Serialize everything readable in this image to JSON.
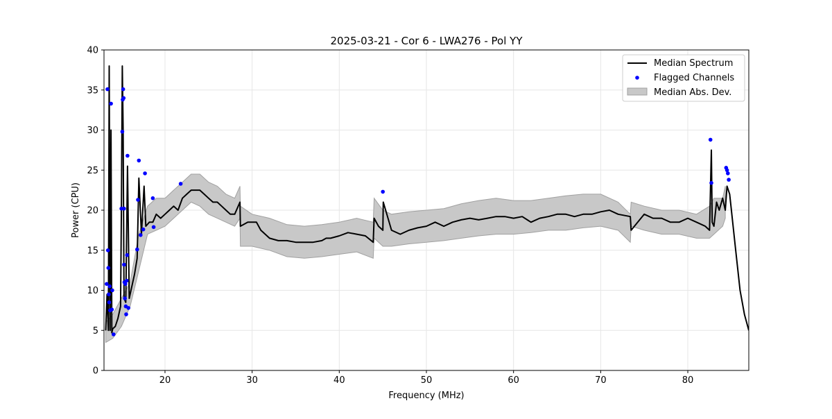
{
  "chart_data": {
    "type": "line",
    "title": "2025-03-21 - Cor 6 - LWA276 - Pol YY",
    "xlabel": "Frequency (MHz)",
    "ylabel": "Power (CPU)",
    "xlim": [
      13.0,
      87.0
    ],
    "ylim": [
      0,
      40
    ],
    "xticks": [
      20,
      30,
      40,
      50,
      60,
      70,
      80
    ],
    "yticks": [
      0,
      5,
      10,
      15,
      20,
      25,
      30,
      35,
      40
    ],
    "grid": true,
    "legend": {
      "placement": "top-right",
      "entries": [
        "Median Spectrum",
        "Flagged Channels",
        "Median Abs. Dev."
      ]
    },
    "colors": {
      "median": "#000000",
      "flagged": "#0000ff",
      "band": "#c8c8c8",
      "band_edge": "#a0a0a0"
    },
    "series": [
      {
        "name": "Median Spectrum",
        "x": [
          13.2,
          13.35,
          13.5,
          13.6,
          13.7,
          13.8,
          13.9,
          14.0,
          14.3,
          14.6,
          14.9,
          15.0,
          15.1,
          15.2,
          15.3,
          15.5,
          15.7,
          15.9,
          16.2,
          16.5,
          16.8,
          17.0,
          17.3,
          17.6,
          17.8,
          18.2,
          18.6,
          19.0,
          19.5,
          20.0,
          20.5,
          21.0,
          21.5,
          22.0,
          22.5,
          23.0,
          23.5,
          24.0,
          24.5,
          25.0,
          25.5,
          26.0,
          26.5,
          27.0,
          27.5,
          28.0,
          28.6,
          28.65,
          29.5,
          30.5,
          31.0,
          31.5,
          32.0,
          33.0,
          34.0,
          35.0,
          36.0,
          37.0,
          38.0,
          38.5,
          39.0,
          40.0,
          41.0,
          42.0,
          43.0,
          43.9,
          44.0,
          44.5,
          45.0,
          45.05,
          46.0,
          47.0,
          48.0,
          49.0,
          50.0,
          51.0,
          52.0,
          53.0,
          54.0,
          55.0,
          56.0,
          57.0,
          58.0,
          59.0,
          60.0,
          61.0,
          62.0,
          63.0,
          64.0,
          65.0,
          66.0,
          67.0,
          68.0,
          69.0,
          70.0,
          71.0,
          72.0,
          73.4,
          73.5,
          75.0,
          76.0,
          77.0,
          78.0,
          79.0,
          80.0,
          81.0,
          82.0,
          82.5,
          82.7,
          82.8,
          83.0,
          83.3,
          83.6,
          84.0,
          84.3,
          84.5,
          84.8,
          85.0,
          85.5,
          86.0,
          86.5,
          87.0
        ],
        "y": [
          5.0,
          9.5,
          5.0,
          38.0,
          5.0,
          30.0,
          4.7,
          5.2,
          5.5,
          6.5,
          8.0,
          20.0,
          38.0,
          30.0,
          9.0,
          8.5,
          25.5,
          9.0,
          10.5,
          12.0,
          14.0,
          24.0,
          17.0,
          23.0,
          18.0,
          18.5,
          18.5,
          19.5,
          19.0,
          19.5,
          20.0,
          20.5,
          20.0,
          21.5,
          22.0,
          22.5,
          22.5,
          22.5,
          22.0,
          21.5,
          21.0,
          21.0,
          20.5,
          20.0,
          19.5,
          19.5,
          21.0,
          18.0,
          18.5,
          18.5,
          17.5,
          17.0,
          16.5,
          16.2,
          16.2,
          16.0,
          16.0,
          16.0,
          16.2,
          16.5,
          16.5,
          16.8,
          17.2,
          17.0,
          16.8,
          16.0,
          19.0,
          18.0,
          17.5,
          21.0,
          17.5,
          17.0,
          17.5,
          17.8,
          18.0,
          18.5,
          18.0,
          18.5,
          18.8,
          19.0,
          18.8,
          19.0,
          19.2,
          19.2,
          19.0,
          19.2,
          18.5,
          19.0,
          19.2,
          19.5,
          19.5,
          19.2,
          19.5,
          19.5,
          19.8,
          20.0,
          19.5,
          19.2,
          17.5,
          19.5,
          19.0,
          19.0,
          18.5,
          18.5,
          19.0,
          18.5,
          18.0,
          17.5,
          27.5,
          18.5,
          18.0,
          21.0,
          20.0,
          21.5,
          20.0,
          23.0,
          22.0,
          20.0,
          15.0,
          10.0,
          7.0,
          5.0
        ]
      },
      {
        "name": "Flagged Channels",
        "x": [
          13.3,
          13.4,
          13.45,
          13.5,
          13.55,
          13.6,
          13.65,
          13.7,
          13.8,
          13.9,
          13.95,
          14.1,
          15.0,
          15.1,
          15.15,
          15.2,
          15.25,
          15.3,
          15.3,
          15.35,
          15.4,
          15.45,
          15.5,
          15.55,
          15.6,
          15.65,
          15.7,
          15.8,
          16.8,
          16.9,
          17.0,
          17.2,
          17.5,
          17.7,
          18.6,
          18.7,
          21.8,
          45.0,
          82.6,
          82.7,
          84.4,
          84.5,
          84.6,
          84.7
        ],
        "y": [
          10.8,
          35.1,
          15.0,
          12.8,
          9.5,
          8.5,
          10.5,
          7.5,
          33.3,
          7.6,
          10.0,
          4.5,
          20.2,
          29.8,
          33.8,
          35.1,
          34.0,
          20.2,
          13.2,
          11.0,
          9.0,
          10.8,
          8.0,
          7.0,
          11.2,
          14.4,
          26.8,
          7.8,
          15.1,
          21.3,
          26.2,
          16.9,
          17.6,
          24.6,
          21.5,
          17.9,
          23.3,
          22.3,
          28.8,
          23.4,
          25.3,
          25.0,
          24.6,
          23.8
        ]
      },
      {
        "name": "Median Abs. Dev.",
        "x": [
          13.2,
          14.0,
          15.0,
          16.0,
          17.0,
          18.0,
          19.0,
          20.0,
          21.0,
          22.0,
          23.0,
          24.0,
          25.0,
          26.0,
          27.0,
          28.0,
          28.6,
          28.65,
          30.0,
          32.0,
          34.0,
          36.0,
          38.0,
          40.0,
          42.0,
          43.9,
          44.0,
          45.0,
          46.0,
          48.0,
          50.0,
          52.0,
          54.0,
          56.0,
          58.0,
          60.0,
          62.0,
          64.0,
          66.0,
          68.0,
          70.0,
          72.0,
          73.4,
          73.5,
          75.0,
          77.0,
          79.0,
          81.0,
          82.5,
          83.0,
          84.0,
          84.3
        ],
        "y_low": [
          3.5,
          4.0,
          5.5,
          8.0,
          12.5,
          17.0,
          17.5,
          18.0,
          19.0,
          20.0,
          21.0,
          20.5,
          19.5,
          19.0,
          18.5,
          18.0,
          19.0,
          15.5,
          15.5,
          15.0,
          14.2,
          14.0,
          14.2,
          14.5,
          14.8,
          14.0,
          16.5,
          15.5,
          15.5,
          15.8,
          16.0,
          16.2,
          16.5,
          16.8,
          17.0,
          17.0,
          17.2,
          17.5,
          17.5,
          17.8,
          18.0,
          17.5,
          16.0,
          18.0,
          17.5,
          17.0,
          17.0,
          16.5,
          16.5,
          17.0,
          18.0,
          19.0
        ],
        "y_high": [
          6.0,
          7.0,
          9.0,
          11.0,
          17.0,
          20.5,
          21.5,
          21.5,
          22.5,
          23.5,
          24.5,
          24.5,
          23.5,
          23.0,
          22.0,
          21.5,
          23.0,
          20.5,
          19.5,
          19.0,
          18.2,
          18.0,
          18.2,
          18.5,
          19.0,
          18.5,
          21.5,
          20.0,
          19.5,
          19.8,
          20.0,
          20.2,
          20.8,
          21.2,
          21.5,
          21.2,
          21.2,
          21.5,
          21.8,
          22.0,
          22.0,
          21.0,
          19.5,
          21.0,
          20.5,
          20.0,
          20.0,
          19.5,
          20.5,
          21.5,
          21.5,
          23.0
        ]
      }
    ]
  }
}
